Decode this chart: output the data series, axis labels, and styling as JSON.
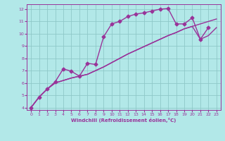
{
  "xlabel": "Windchill (Refroidissement éolien,°C)",
  "bg_color": "#b2e8e8",
  "grid_color": "#8fc8c8",
  "line_color": "#993399",
  "xlim": [
    -0.5,
    23.5
  ],
  "ylim": [
    3.8,
    12.4
  ],
  "xticks": [
    0,
    1,
    2,
    3,
    4,
    5,
    6,
    7,
    8,
    9,
    10,
    11,
    12,
    13,
    14,
    15,
    16,
    17,
    18,
    19,
    20,
    21,
    22,
    23
  ],
  "yticks": [
    4,
    5,
    6,
    7,
    8,
    9,
    10,
    11,
    12
  ],
  "line1_x": [
    0,
    1,
    2,
    3,
    4,
    5,
    6,
    7,
    8,
    9,
    10,
    11,
    12,
    13,
    14,
    15,
    16,
    17,
    18,
    19,
    20,
    21,
    22,
    23
  ],
  "line1_y": [
    4.0,
    4.85,
    5.5,
    6.0,
    6.2,
    6.4,
    6.55,
    6.7,
    7.0,
    7.3,
    7.65,
    8.0,
    8.35,
    8.65,
    8.95,
    9.25,
    9.55,
    9.85,
    10.1,
    10.4,
    10.6,
    10.8,
    11.0,
    11.2
  ],
  "line2_x": [
    0,
    1,
    2,
    3,
    4,
    5,
    6,
    7,
    8,
    9,
    10,
    11,
    12,
    13,
    14,
    15,
    16,
    17,
    18,
    19,
    20,
    21,
    22,
    23
  ],
  "line2_y": [
    4.0,
    4.85,
    5.5,
    6.0,
    6.2,
    6.4,
    6.55,
    6.7,
    7.0,
    7.3,
    7.65,
    8.0,
    8.35,
    8.65,
    8.95,
    9.25,
    9.55,
    9.85,
    10.1,
    10.4,
    10.6,
    9.55,
    9.85,
    10.5
  ],
  "line3_x": [
    0,
    1,
    2,
    3,
    4,
    5,
    6,
    7,
    8,
    9,
    10,
    11,
    12,
    13,
    14,
    15,
    16,
    17,
    18,
    19,
    20,
    21,
    22
  ],
  "line3_y": [
    4.0,
    4.85,
    5.5,
    6.1,
    7.15,
    6.95,
    6.55,
    7.6,
    7.5,
    9.75,
    10.8,
    11.0,
    11.4,
    11.6,
    11.7,
    11.85,
    12.0,
    12.05,
    10.8,
    10.8,
    11.3,
    9.55,
    10.5
  ],
  "marker": "D",
  "markersize": 2.5,
  "linewidth": 1.0
}
